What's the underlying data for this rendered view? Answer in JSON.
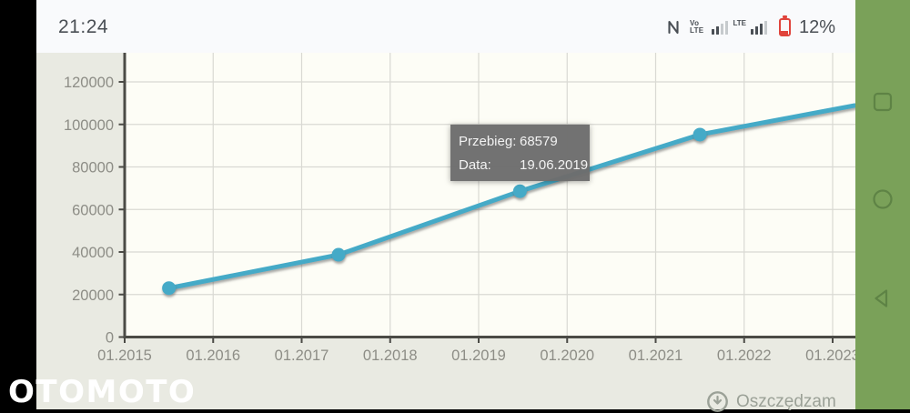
{
  "status_bar": {
    "time": "21:24",
    "volte": {
      "line1": "Vo",
      "line2": "LTE"
    },
    "lte_label": "LTE",
    "battery_percent": "12%"
  },
  "chart": {
    "tooltip": {
      "rows": [
        {
          "label": "Przebieg:",
          "value": "68579"
        },
        {
          "label": "Data:",
          "value": "19.06.2019"
        }
      ]
    }
  },
  "chart_data": {
    "type": "line",
    "title": "",
    "xlabel": "",
    "ylabel": "",
    "x_ticks": [
      "01.2015",
      "01.2016",
      "01.2017",
      "01.2018",
      "01.2019",
      "01.2020",
      "01.2021",
      "01.2022",
      "01.2023"
    ],
    "y_ticks": [
      0,
      20000,
      40000,
      60000,
      80000,
      100000,
      120000
    ],
    "ylim": [
      0,
      133000
    ],
    "grid": true,
    "legend": "none",
    "line_color": "#45aac7",
    "series": [
      {
        "name": "Przebieg",
        "points": [
          {
            "date": "07.2015",
            "value": 23000,
            "marker": true
          },
          {
            "date": "06.2017",
            "value": 38700,
            "marker": true
          },
          {
            "date": "19.06.2019",
            "value": 68579,
            "marker": true
          },
          {
            "date": "07.2021",
            "value": 95200,
            "marker": true
          },
          {
            "date": "04.2023",
            "value": 108900,
            "marker": false
          }
        ]
      }
    ]
  },
  "footer": {
    "save_label": "Oszczędzam"
  },
  "watermark": "OTOMOTO",
  "nav": {
    "buttons": [
      "recents",
      "home",
      "back"
    ]
  },
  "colors": {
    "nav_bar_green": "#7aa159",
    "nav_icon_green": "#55793f",
    "widget_background": "#e9eae2",
    "plot_background": "#fdfdf6",
    "gridline": "#d9d9d3",
    "axis": "#4b4b46",
    "tick_label": "#8d8d86",
    "line": "#45aac7",
    "tooltip_background": "#6d6d6d",
    "battery_low_red": "#e0443c",
    "status_text": "#4a4f55"
  }
}
